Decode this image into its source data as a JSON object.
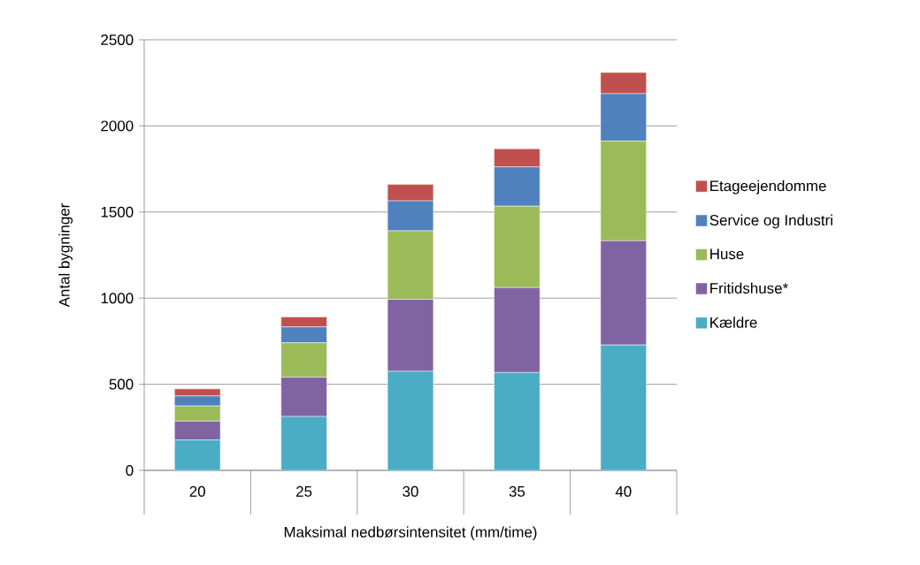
{
  "chart_data": {
    "type": "bar",
    "stacked": true,
    "xlabel": "Maksimal nedbørsintensitet (mm/time)",
    "ylabel": "Antal bygninger",
    "categories": [
      "20",
      "25",
      "30",
      "35",
      "40"
    ],
    "series": [
      {
        "name": "Kældre",
        "color": "#4bacc6",
        "values": [
          177,
          313,
          575,
          568,
          728
        ]
      },
      {
        "name": "Fritidshuse*",
        "color": "#8064a2",
        "values": [
          109,
          228,
          418,
          493,
          605
        ]
      },
      {
        "name": "Huse",
        "color": "#9bbb59",
        "values": [
          88,
          200,
          398,
          473,
          579
        ]
      },
      {
        "name": "Service og Industri",
        "color": "#4f81bd",
        "values": [
          58,
          92,
          174,
          228,
          275
        ]
      },
      {
        "name": "Etageejendomme",
        "color": "#c0504d",
        "values": [
          41,
          58,
          95,
          105,
          123
        ]
      }
    ],
    "ylim": [
      0,
      2500
    ],
    "yticks": [
      0,
      500,
      1000,
      1500,
      2000,
      2500
    ],
    "grid": "y",
    "legend": "right"
  }
}
